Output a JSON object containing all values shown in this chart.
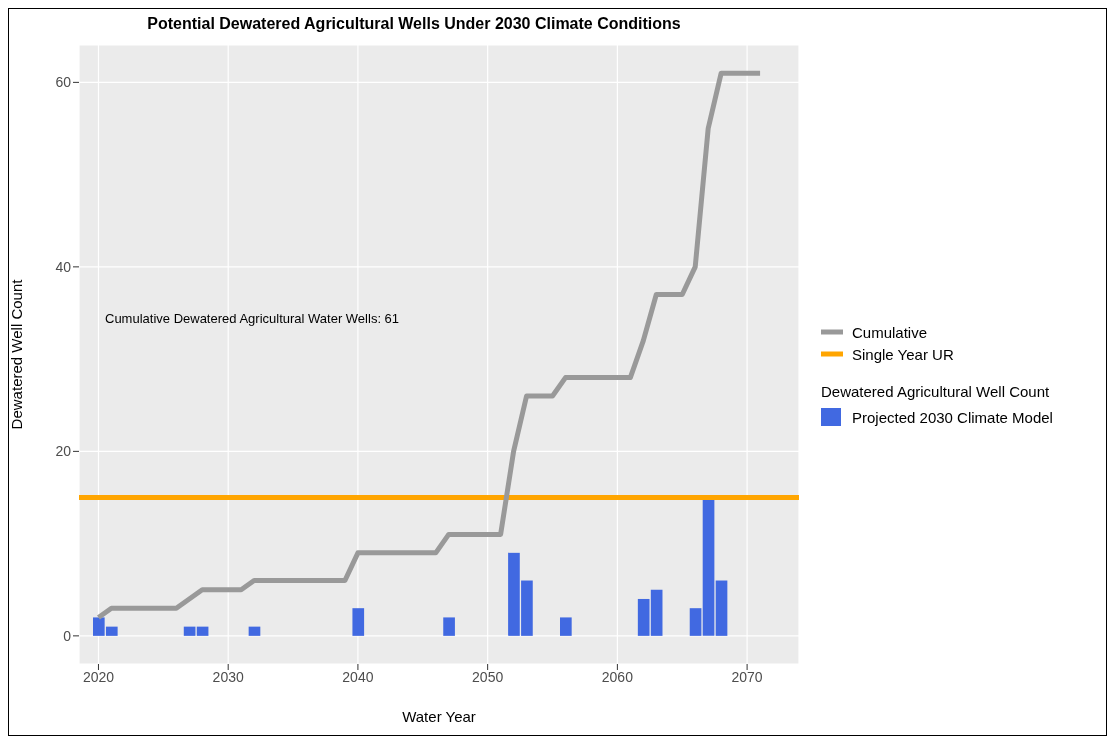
{
  "chart_data": {
    "type": "bar",
    "title": "Potential Dewatered Agricultural Wells Under 2030 Climate Conditions",
    "xlabel": "Water Year",
    "ylabel": "Dewatered Well Count",
    "legend_title": "Dewatered Agricultural Well Count",
    "annotations": [
      "Cumulative Dewatered Agricultural Water Wells: 61"
    ],
    "series": [
      {
        "name": "Cumulative",
        "type": "line",
        "color": "#999999",
        "x": [
          2020,
          2021,
          2026,
          2028,
          2031,
          2032,
          2039,
          2040,
          2046,
          2047,
          2051,
          2052,
          2053,
          2055,
          2056,
          2061,
          2062,
          2063,
          2065,
          2066,
          2067,
          2068,
          2071
        ],
        "values": [
          2,
          3,
          3,
          5,
          5,
          6,
          6,
          9,
          9,
          11,
          11,
          20,
          26,
          26,
          28,
          28,
          32,
          37,
          37,
          40,
          55,
          61,
          61
        ]
      },
      {
        "name": "Projected 2030 Climate Model",
        "color": "#4169e1",
        "x": [
          2020,
          2021,
          2027,
          2028,
          2032,
          2040,
          2047,
          2052,
          2053,
          2056,
          2062,
          2063,
          2066,
          2067,
          2068
        ],
        "values": [
          2,
          1,
          1,
          1,
          1,
          3,
          2,
          9,
          6,
          2,
          4,
          5,
          3,
          15,
          6
        ]
      }
    ],
    "ref_lines": [
      {
        "axis": "y",
        "value": 15,
        "label": "Single Year UR",
        "color": "#ffa500"
      }
    ],
    "xlim": [
      2018.5,
      2074
    ],
    "xticks": [
      2020,
      2030,
      2040,
      2050,
      2060,
      2070
    ],
    "ylim": [
      -3.05,
      64.05
    ],
    "yticks": [
      0,
      20,
      40,
      60
    ],
    "grid": true,
    "legend": "right"
  }
}
